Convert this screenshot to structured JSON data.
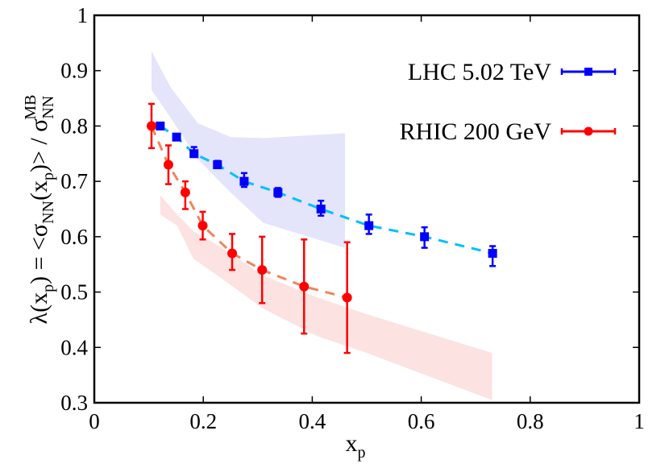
{
  "chart_data": {
    "type": "scatter",
    "title": "",
    "xlabel": "x_p",
    "ylabel": "λ(x_p) = <σ_NN(x_p)> / σ_NN^MB",
    "xlim": [
      0,
      1
    ],
    "ylim": [
      0.3,
      1
    ],
    "x_ticks": [
      "0",
      "0.2",
      "0.4",
      "0.6",
      "0.8",
      "1"
    ],
    "y_ticks": [
      "0.3",
      "0.4",
      "0.5",
      "0.6",
      "0.7",
      "0.8",
      "0.9",
      "1"
    ],
    "grid": false,
    "legend_position": "upper right",
    "series": [
      {
        "name": "LHC 5.02 TeV",
        "color": "#0000ff",
        "marker": "square",
        "fit_line_color": "#00bfff",
        "x": [
          0.121,
          0.151,
          0.183,
          0.226,
          0.275,
          0.337,
          0.416,
          0.504,
          0.606,
          0.731
        ],
        "y": [
          0.8,
          0.78,
          0.75,
          0.73,
          0.7,
          0.68,
          0.65,
          0.62,
          0.6,
          0.57
        ],
        "yerr_low": [
          0.8,
          0.78,
          0.745,
          0.725,
          0.69,
          0.672,
          0.638,
          0.605,
          0.58,
          0.547
        ],
        "yerr_high": [
          0.8,
          0.78,
          0.762,
          0.737,
          0.715,
          0.688,
          0.665,
          0.64,
          0.617,
          0.583
        ],
        "band": {
          "color": "#e4e4fb",
          "x": [
            0.105,
            0.14,
            0.19,
            0.25,
            0.31,
            0.46
          ],
          "upper": [
            0.935,
            0.87,
            0.805,
            0.78,
            0.778,
            0.787
          ],
          "lower": [
            0.865,
            0.815,
            0.74,
            0.68,
            0.625,
            0.58
          ]
        }
      },
      {
        "name": "RHIC 200 GeV",
        "color": "#ff0000",
        "marker": "circle",
        "fit_line_color": "#f4825a",
        "x": [
          0.105,
          0.136,
          0.167,
          0.199,
          0.253,
          0.308,
          0.385,
          0.464
        ],
        "y": [
          0.8,
          0.73,
          0.68,
          0.62,
          0.57,
          0.54,
          0.51,
          0.49
        ],
        "yerr_low": [
          0.76,
          0.695,
          0.65,
          0.595,
          0.54,
          0.48,
          0.425,
          0.39
        ],
        "yerr_high": [
          0.84,
          0.765,
          0.7,
          0.645,
          0.605,
          0.6,
          0.595,
          0.59
        ],
        "band": {
          "color": "#fde2e2",
          "x": [
            0.121,
            0.152,
            0.182,
            0.226,
            0.31,
            0.41,
            0.5,
            0.73
          ],
          "upper": [
            0.675,
            0.64,
            0.61,
            0.585,
            0.53,
            0.49,
            0.46,
            0.39
          ],
          "lower": [
            0.64,
            0.62,
            0.56,
            0.53,
            0.47,
            0.42,
            0.39,
            0.305
          ]
        }
      }
    ]
  },
  "labels": {
    "ylabel_lambda": "λ(x",
    "ylabel_p": "p",
    "ylabel_mid": ") = <σ",
    "ylabel_nn": "NN",
    "ylabel_x": "(x",
    "ylabel_p2": "p",
    "ylabel_close": ")> / σ",
    "ylabel_nn2": "NN",
    "ylabel_mb": "MB",
    "xlabel_x": "x",
    "xlabel_p": "p",
    "legend_lhc": "LHC 5.02 TeV",
    "legend_rhic": "RHIC 200 GeV"
  }
}
